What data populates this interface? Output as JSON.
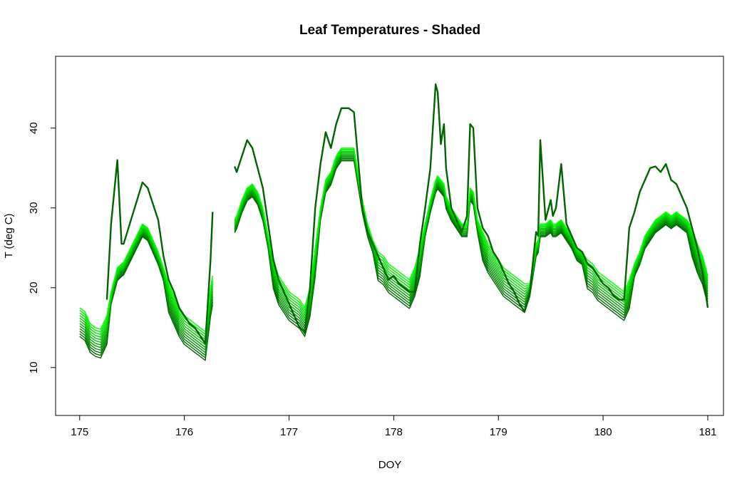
{
  "chart_data": {
    "type": "line",
    "title": "Leaf Temperatures - Shaded",
    "xlabel": "DOY",
    "ylabel": "T (deg C)",
    "xlim": [
      174.77,
      181.15
    ],
    "ylim": [
      4.0,
      49.0
    ],
    "xticks": [
      175,
      176,
      177,
      178,
      179,
      180,
      181
    ],
    "yticks": [
      10,
      20,
      30,
      40
    ],
    "grid": false,
    "legend": "none",
    "colors": {
      "air": "#006400",
      "layer_dark": "#006400",
      "layer_light": "#00ff00"
    },
    "gaps": [
      [
        175.06,
        175.07
      ],
      [
        175.95,
        175.97
      ],
      [
        176.29,
        176.31
      ],
      [
        177.36,
        177.38
      ],
      [
        178.55,
        178.57
      ],
      [
        179.34,
        179.36
      ]
    ],
    "missing_air": [
      [
        175.0,
        175.26
      ],
      [
        175.42,
        175.6
      ],
      [
        176.25,
        176.27
      ],
      [
        176.36,
        176.48
      ],
      [
        177.54,
        177.57
      ],
      [
        179.36,
        179.38
      ],
      [
        179.52,
        179.55
      ]
    ],
    "layer_count": 12,
    "series": [
      {
        "name": "",
        "role": "air",
        "x": [
          175.0,
          175.05,
          175.1,
          175.15,
          175.2,
          175.26,
          175.3,
          175.33,
          175.36,
          175.4,
          175.42,
          175.6,
          175.65,
          175.7,
          175.75,
          175.8,
          175.85,
          175.9,
          175.95,
          176.0,
          176.05,
          176.1,
          176.15,
          176.2,
          176.25,
          176.27,
          176.3,
          176.33,
          176.36,
          176.48,
          176.5,
          176.55,
          176.6,
          176.65,
          176.7,
          176.75,
          176.8,
          176.85,
          176.9,
          176.95,
          177.0,
          177.05,
          177.1,
          177.15,
          177.2,
          177.25,
          177.3,
          177.35,
          177.4,
          177.45,
          177.5,
          177.54,
          177.57,
          177.62,
          177.7,
          177.75,
          177.8,
          177.85,
          177.9,
          177.95,
          178.0,
          178.05,
          178.1,
          178.15,
          178.2,
          178.25,
          178.3,
          178.35,
          178.4,
          178.42,
          178.45,
          178.48,
          178.5,
          178.55,
          178.6,
          178.65,
          178.7,
          178.73,
          178.76,
          178.8,
          178.85,
          178.9,
          178.95,
          179.0,
          179.05,
          179.1,
          179.15,
          179.2,
          179.25,
          179.3,
          179.36,
          179.38,
          179.4,
          179.45,
          179.5,
          179.52,
          179.55,
          179.6,
          179.65,
          179.7,
          179.75,
          179.8,
          179.85,
          179.9,
          179.95,
          180.0,
          180.05,
          180.1,
          180.15,
          180.2,
          180.25,
          180.3,
          180.35,
          180.4,
          180.45,
          180.5,
          180.55,
          180.6,
          180.65,
          180.7,
          180.75,
          180.8,
          180.85,
          180.9,
          180.95,
          181.0
        ],
        "y": [
          null,
          null,
          null,
          null,
          null,
          18.5,
          28,
          32,
          36,
          25.5,
          25.5,
          33.2,
          32.5,
          30.5,
          28.5,
          24,
          21,
          19.5,
          17.5,
          16.5,
          15.5,
          15.0,
          14.0,
          13.0,
          23.5,
          29.5,
          27.5,
          29.5,
          null,
          35.2,
          34.5,
          36.5,
          38.5,
          37.5,
          35.0,
          32.5,
          28.0,
          23.5,
          21.0,
          19.5,
          18.0,
          16.5,
          15.0,
          14.5,
          20.0,
          30.0,
          35.5,
          39.5,
          37.5,
          40.5,
          42.5,
          42.5,
          42.5,
          42.0,
          30.0,
          27.0,
          25.5,
          24.0,
          22.5,
          21.0,
          21.5,
          20.5,
          20.0,
          19.5,
          19.5,
          25.5,
          30.0,
          35.0,
          45.5,
          44.5,
          38.0,
          40.5,
          35.0,
          30.0,
          28.5,
          27.0,
          29.0,
          40.5,
          40.0,
          30.0,
          27.5,
          26.5,
          24.5,
          23.5,
          22.0,
          20.5,
          19.5,
          18.0,
          17.0,
          19.5,
          27.0,
          26.5,
          38.5,
          28.5,
          31.0,
          29.0,
          30.0,
          35.5,
          28.0,
          26.5,
          25.0,
          24.5,
          23.0,
          22.5,
          21.5,
          20.5,
          20.0,
          19.0,
          18.5,
          18.5,
          27.5,
          29.5,
          32.0,
          33.5,
          35.0,
          35.2,
          34.5,
          35.5,
          33.5,
          33.0,
          31.5,
          30.0,
          27.5,
          25.0,
          22.0,
          17.5
        ]
      },
      {
        "name": "",
        "role": "layer",
        "x": [
          175.0,
          175.05,
          175.1,
          175.15,
          175.2,
          175.26,
          175.3,
          175.33,
          175.36,
          175.4,
          175.42,
          175.6,
          175.65,
          175.7,
          175.75,
          175.8,
          175.85,
          175.9,
          175.95,
          176.0,
          176.05,
          176.1,
          176.15,
          176.2,
          176.25,
          176.27,
          176.3,
          176.33,
          176.36,
          176.48,
          176.5,
          176.55,
          176.6,
          176.65,
          176.7,
          176.75,
          176.8,
          176.85,
          176.9,
          176.95,
          177.0,
          177.05,
          177.1,
          177.15,
          177.2,
          177.25,
          177.3,
          177.35,
          177.4,
          177.45,
          177.5,
          177.54,
          177.57,
          177.62,
          177.7,
          177.75,
          177.8,
          177.85,
          177.9,
          177.95,
          178.0,
          178.05,
          178.1,
          178.15,
          178.2,
          178.25,
          178.3,
          178.35,
          178.4,
          178.42,
          178.45,
          178.48,
          178.5,
          178.55,
          178.6,
          178.65,
          178.7,
          178.73,
          178.76,
          178.8,
          178.85,
          178.9,
          178.95,
          179.0,
          179.05,
          179.1,
          179.15,
          179.2,
          179.25,
          179.3,
          179.36,
          179.38,
          179.4,
          179.45,
          179.5,
          179.52,
          179.55,
          179.6,
          179.65,
          179.7,
          179.75,
          179.8,
          179.85,
          179.9,
          179.95,
          180.0,
          180.05,
          180.1,
          180.15,
          180.2,
          180.25,
          180.3,
          180.35,
          180.4,
          180.45,
          180.5,
          180.55,
          180.6,
          180.65,
          180.7,
          180.75,
          180.8,
          180.85,
          180.9,
          180.95,
          181.0
        ],
        "y": [
          17.5,
          17.0,
          15.5,
          15.0,
          14.8,
          16.5,
          19.5,
          21.0,
          22.5,
          23.0,
          23.2,
          28.0,
          27.5,
          26.0,
          24.5,
          22.5,
          20.5,
          19.0,
          17.5,
          16.5,
          16.0,
          15.5,
          15.0,
          14.5,
          20.0,
          21.5,
          22.0,
          22.5,
          null,
          28.5,
          29.0,
          31.0,
          32.5,
          33.0,
          32.0,
          30.0,
          26.5,
          23.5,
          21.5,
          20.5,
          19.5,
          19.0,
          18.5,
          17.5,
          20.0,
          25.0,
          30.0,
          33.5,
          34.5,
          36.5,
          37.5,
          37.5,
          37.5,
          37.5,
          31.0,
          28.0,
          26.0,
          24.5,
          24.0,
          23.0,
          22.5,
          22.0,
          21.5,
          21.0,
          22.5,
          25.0,
          28.0,
          31.0,
          33.5,
          34.0,
          33.5,
          33.0,
          31.5,
          30.0,
          29.0,
          28.0,
          28.0,
          32.5,
          32.0,
          28.5,
          27.0,
          25.5,
          24.5,
          23.5,
          22.5,
          22.0,
          21.5,
          21.0,
          20.5,
          20.5,
          25.5,
          26.0,
          28.0,
          28.0,
          28.5,
          28.0,
          28.0,
          28.5,
          27.5,
          26.5,
          25.0,
          24.5,
          23.5,
          23.0,
          22.0,
          21.5,
          21.0,
          20.5,
          20.0,
          19.5,
          21.0,
          23.0,
          24.5,
          26.5,
          27.5,
          28.5,
          29.0,
          29.5,
          29.0,
          29.5,
          29.0,
          28.5,
          27.5,
          25.5,
          24.0,
          21.5
        ]
      }
    ]
  }
}
